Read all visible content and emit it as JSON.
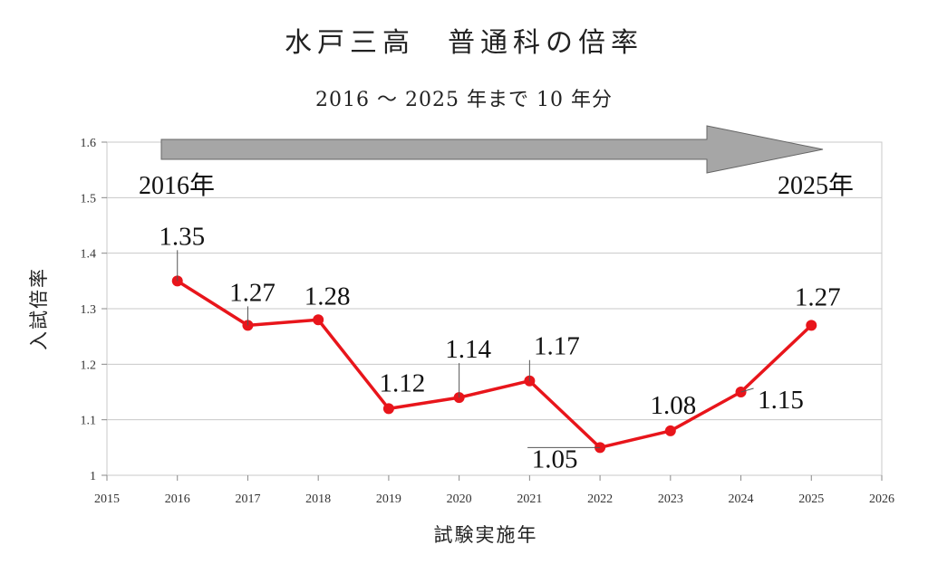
{
  "colors": {
    "line": "#e8151b",
    "marker": "#e8151b",
    "arrow_fill": "#a6a6a6",
    "grid": "#c8c8c8"
  },
  "chart_data": {
    "type": "line",
    "title": "水戸三高　普通科の倍率",
    "subtitle": "2016 〜 2025 年まで 10 年分",
    "xlabel": "試験実施年",
    "ylabel": "入試倍率",
    "xlim": [
      2015,
      2026
    ],
    "ylim": [
      1.0,
      1.6
    ],
    "x_ticks": [
      "2015",
      "2016",
      "2017",
      "2018",
      "2019",
      "2020",
      "2021",
      "2022",
      "2023",
      "2024",
      "2025",
      "2026"
    ],
    "y_ticks": [
      "1",
      "1.1",
      "1.2",
      "1.3",
      "1.4",
      "1.5",
      "1.6"
    ],
    "grid": true,
    "legend": "none",
    "series": [
      {
        "x": [
          2016,
          2017,
          2018,
          2019,
          2020,
          2021,
          2022,
          2023,
          2024,
          2025
        ],
        "values": [
          1.35,
          1.27,
          1.28,
          1.12,
          1.14,
          1.17,
          1.05,
          1.08,
          1.15,
          1.27
        ],
        "labels": [
          "1.35",
          "1.27",
          "1.28",
          "1.12",
          "1.14",
          "1.17",
          "1.05",
          "1.08",
          "1.15",
          "1.27"
        ]
      }
    ],
    "annotations": {
      "arrow_start_label": "2016年",
      "arrow_end_label": "2025年"
    }
  }
}
